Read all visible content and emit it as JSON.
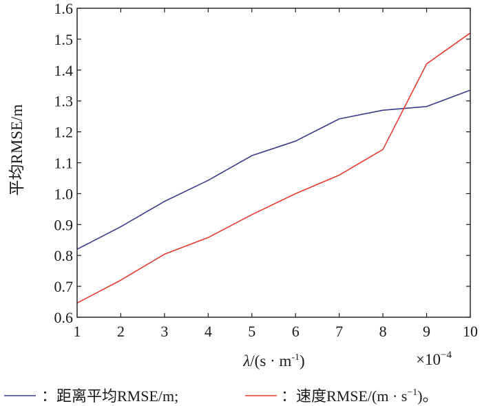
{
  "chart_data": {
    "type": "line",
    "xlabel_italic": "λ",
    "xlabel_rest": "/(s · m",
    "xlabel_sup": "-1",
    "xlabel_close": ")",
    "x_multiplier_base": "×10",
    "x_multiplier_exp": "−4",
    "ylabel": "平均RMSE/m",
    "xlim": [
      1,
      10
    ],
    "ylim": [
      0.6,
      1.6
    ],
    "x_ticks": [
      1,
      2,
      3,
      4,
      5,
      6,
      7,
      8,
      9,
      10
    ],
    "x_tick_labels": [
      "1",
      "2",
      "3",
      "4",
      "5",
      "6",
      "7",
      "8",
      "9",
      "10"
    ],
    "y_ticks": [
      0.6,
      0.7,
      0.8,
      0.9,
      1.0,
      1.1,
      1.2,
      1.3,
      1.4,
      1.5,
      1.6
    ],
    "y_tick_labels": [
      "0.6",
      "0.7",
      "0.8",
      "0.9",
      "1.0",
      "1.1",
      "1.2",
      "1.3",
      "1.4",
      "1.5",
      "1.6"
    ],
    "x": [
      1,
      2,
      3,
      4,
      5,
      6,
      7,
      8,
      9,
      10
    ],
    "series": [
      {
        "name": "：距离平均RMSE/m;",
        "color": "#3a3a8c",
        "values": [
          0.82,
          0.893,
          0.975,
          1.043,
          1.123,
          1.17,
          1.242,
          1.27,
          1.282,
          1.335
        ]
      },
      {
        "name": "：速度RMSE/(m · s",
        "name_sup": "−1",
        "name_close": ")。",
        "color": "#e53a2c",
        "values": [
          0.646,
          0.72,
          0.804,
          0.858,
          0.932,
          1.0,
          1.06,
          1.143,
          1.42,
          1.52
        ]
      }
    ],
    "grid": false,
    "legend_position": "bottom"
  }
}
